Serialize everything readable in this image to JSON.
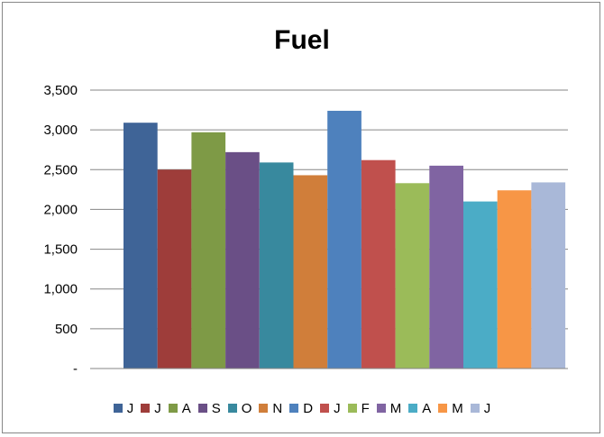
{
  "chart_data": {
    "type": "bar",
    "title": "Fuel",
    "xlabel": "",
    "ylabel": "",
    "ylim": [
      0,
      3500
    ],
    "yticks": [
      {
        "value": 0,
        "label": "-"
      },
      {
        "value": 500,
        "label": "500"
      },
      {
        "value": 1000,
        "label": "1,000"
      },
      {
        "value": 1500,
        "label": "1,500"
      },
      {
        "value": 2000,
        "label": "2,000"
      },
      {
        "value": 2500,
        "label": "2,500"
      },
      {
        "value": 3000,
        "label": "3,000"
      },
      {
        "value": 3500,
        "label": "3,500"
      }
    ],
    "grid": true,
    "legend_position": "bottom",
    "series": [
      {
        "name": "J",
        "value": 3090,
        "color": "#3F6497"
      },
      {
        "name": "J",
        "value": 2500,
        "color": "#9E3D3A"
      },
      {
        "name": "A",
        "value": 2970,
        "color": "#7E9A46"
      },
      {
        "name": "S",
        "value": 2720,
        "color": "#6A4F86"
      },
      {
        "name": "O",
        "value": 2590,
        "color": "#38899E"
      },
      {
        "name": "N",
        "value": 2430,
        "color": "#D07E3A"
      },
      {
        "name": "D",
        "value": 3240,
        "color": "#4E81BD"
      },
      {
        "name": "J",
        "value": 2620,
        "color": "#C0504D"
      },
      {
        "name": "F",
        "value": 2330,
        "color": "#9BBB59"
      },
      {
        "name": "M",
        "value": 2550,
        "color": "#8064A2"
      },
      {
        "name": "A",
        "value": 2100,
        "color": "#4BACC6"
      },
      {
        "name": "M",
        "value": 2240,
        "color": "#F79646"
      },
      {
        "name": "J",
        "value": 2340,
        "color": "#A9B8D8"
      }
    ]
  },
  "colors": {
    "gridline": "#868686",
    "axis": "#868686"
  }
}
